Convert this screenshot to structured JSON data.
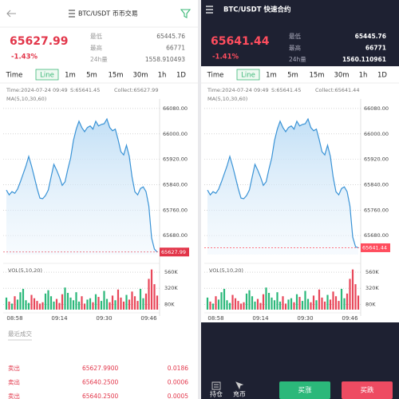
{
  "screens": [
    {
      "theme": "light",
      "header": {
        "title": "BTC/USDT 币币交易"
      },
      "price": "65627.99",
      "change": "-1.43%",
      "stats": [
        {
          "label": "最低",
          "value": "65445.76"
        },
        {
          "label": "最高",
          "value": "66771"
        },
        {
          "label": "24h量",
          "value": "1558.910493"
        }
      ],
      "tabs": [
        "Time",
        "Line",
        "1m",
        "5m",
        "15m",
        "30m",
        "1h",
        "1D"
      ],
      "active_tab": 1,
      "info": {
        "time": "Time:2024-07-24 09:49",
        "s": "S:65641.45",
        "collect": "Collect:65627.99"
      },
      "chart_data": {
        "type": "line",
        "title": "MA(5,10,30,60)",
        "color": "#3a93d6",
        "categories": [
          null,
          null,
          null,
          "08:58",
          null,
          null,
          null,
          null,
          null,
          null,
          null,
          null,
          null,
          null,
          null,
          null,
          null,
          null,
          null,
          "09:14",
          null,
          null,
          null,
          null,
          null,
          null,
          null,
          null,
          null,
          null,
          null,
          null,
          null,
          null,
          null,
          "09:30",
          null,
          null,
          null,
          null,
          null,
          null,
          null,
          null,
          null,
          null,
          null,
          null,
          null,
          null,
          null,
          "09:46",
          null,
          null,
          null
        ],
        "values": [
          65823,
          65808,
          65818,
          65813,
          65826,
          65849,
          65874,
          65899,
          65929,
          65899,
          65864,
          65828,
          65798,
          65796,
          65806,
          65823,
          65864,
          65904,
          65886,
          65864,
          65838,
          65849,
          65889,
          65924,
          65979,
          66015,
          66040,
          66020,
          66007,
          66020,
          66025,
          66015,
          66040,
          66025,
          66030,
          66032,
          66047,
          66020,
          66010,
          66015,
          65982,
          65944,
          65934,
          65964,
          65929,
          65864,
          65818,
          65808,
          65828,
          65833,
          65818,
          65773,
          65672,
          65637,
          65628
        ],
        "last_price": 65627.99,
        "ylim": [
          65620,
          66100
        ],
        "yticks": [
          {
            "value": 66080,
            "label": "66080.00"
          },
          {
            "value": 66000,
            "label": "66000.00"
          },
          {
            "value": 65920,
            "label": "65920.00"
          },
          {
            "value": 65840,
            "label": "65840.00"
          },
          {
            "value": 65760,
            "label": "65760.00"
          },
          {
            "value": 65680,
            "label": "65680.00"
          }
        ]
      },
      "volume": {
        "type": "bar",
        "title": "VOL(5,10,20)",
        "up_color": "#2bb87a",
        "down_color": "#e8475a",
        "values": [
          180000,
          120000,
          90000,
          200000,
          150000,
          260000,
          310000,
          140000,
          100000,
          220000,
          170000,
          130000,
          90000,
          110000,
          240000,
          290000,
          200000,
          120000,
          160000,
          100000,
          230000,
          330000,
          250000,
          180000,
          140000,
          260000,
          120000,
          200000,
          90000,
          150000,
          170000,
          110000,
          230000,
          190000,
          130000,
          280000,
          160000,
          110000,
          210000,
          140000,
          300000,
          180000,
          120000,
          220000,
          150000,
          270000,
          200000,
          130000,
          310000,
          170000,
          240000,
          460000,
          600000,
          380000,
          210000
        ],
        "ylim": [
          0,
          620000
        ],
        "yticks": [
          {
            "value": 560000,
            "label": "560K"
          },
          {
            "value": 320000,
            "label": "320K"
          },
          {
            "value": 80000,
            "label": "80K"
          }
        ]
      },
      "trades": {
        "title": "最近成交",
        "rows": [
          [
            "卖出",
            "65627.9900",
            "0.0186"
          ],
          [
            "卖出",
            "65640.2500",
            "0.0006"
          ],
          [
            "卖出",
            "65640.2500",
            "0.0005"
          ]
        ]
      }
    },
    {
      "theme": "dark",
      "header": {
        "title": "BTC/USDT 快速合约"
      },
      "price": "65641.44",
      "change": "-1.41%",
      "stats": [
        {
          "label": "最低",
          "value": "65445.76"
        },
        {
          "label": "最高",
          "value": "66771"
        },
        {
          "label": "24h量",
          "value": "1560.110961"
        }
      ],
      "tabs": [
        "Time",
        "Line",
        "1m",
        "5m",
        "15m",
        "30m",
        "1h",
        "1D"
      ],
      "active_tab": 1,
      "info": {
        "time": "Time:2024-07-24 09:49",
        "s": "S:65641.45",
        "collect": "Collect:65641.44"
      },
      "chart_data": {
        "type": "line",
        "title": "MA(5,10,30,60)",
        "color": "#3a93d6",
        "categories": [
          null,
          null,
          null,
          "08:58",
          null,
          null,
          null,
          null,
          null,
          null,
          null,
          null,
          null,
          null,
          null,
          null,
          null,
          null,
          null,
          "09:14",
          null,
          null,
          null,
          null,
          null,
          null,
          null,
          null,
          null,
          null,
          null,
          null,
          null,
          null,
          null,
          "09:30",
          null,
          null,
          null,
          null,
          null,
          null,
          null,
          null,
          null,
          null,
          null,
          null,
          null,
          null,
          null,
          "09:46",
          null,
          null,
          null
        ],
        "values": [
          65823,
          65808,
          65818,
          65813,
          65826,
          65849,
          65874,
          65899,
          65929,
          65899,
          65864,
          65828,
          65798,
          65796,
          65806,
          65823,
          65864,
          65904,
          65886,
          65864,
          65838,
          65849,
          65889,
          65924,
          65979,
          66015,
          66040,
          66020,
          66007,
          66020,
          66025,
          66015,
          66040,
          66025,
          66030,
          66032,
          66047,
          66020,
          66010,
          66015,
          65982,
          65944,
          65934,
          65964,
          65929,
          65864,
          65818,
          65808,
          65828,
          65833,
          65818,
          65773,
          65675,
          65645,
          65641
        ],
        "last_price": 65641.44,
        "ylim": [
          65620,
          66100
        ],
        "yticks": [
          {
            "value": 66080,
            "label": "66080.00"
          },
          {
            "value": 66000,
            "label": "66000.00"
          },
          {
            "value": 65920,
            "label": "65920.00"
          },
          {
            "value": 65840,
            "label": "65840.00"
          },
          {
            "value": 65760,
            "label": "65760.00"
          },
          {
            "value": 65680,
            "label": "65680.00"
          }
        ]
      },
      "volume": {
        "type": "bar",
        "title": "VOL(5,10,20)",
        "up_color": "#2bb87a",
        "down_color": "#e8475a",
        "values": [
          180000,
          120000,
          90000,
          200000,
          150000,
          260000,
          310000,
          140000,
          100000,
          220000,
          170000,
          130000,
          90000,
          110000,
          240000,
          290000,
          200000,
          120000,
          160000,
          100000,
          230000,
          330000,
          250000,
          180000,
          140000,
          260000,
          120000,
          200000,
          90000,
          150000,
          170000,
          110000,
          230000,
          190000,
          130000,
          280000,
          160000,
          110000,
          210000,
          140000,
          300000,
          180000,
          120000,
          220000,
          150000,
          270000,
          200000,
          130000,
          310000,
          170000,
          240000,
          460000,
          600000,
          380000,
          210000
        ],
        "ylim": [
          0,
          620000
        ],
        "yticks": [
          {
            "value": 560000,
            "label": "560K"
          },
          {
            "value": 320000,
            "label": "320K"
          },
          {
            "value": 80000,
            "label": "80K"
          }
        ]
      },
      "actions": [
        "持仓",
        "充币",
        "买涨",
        "买跌"
      ]
    }
  ]
}
